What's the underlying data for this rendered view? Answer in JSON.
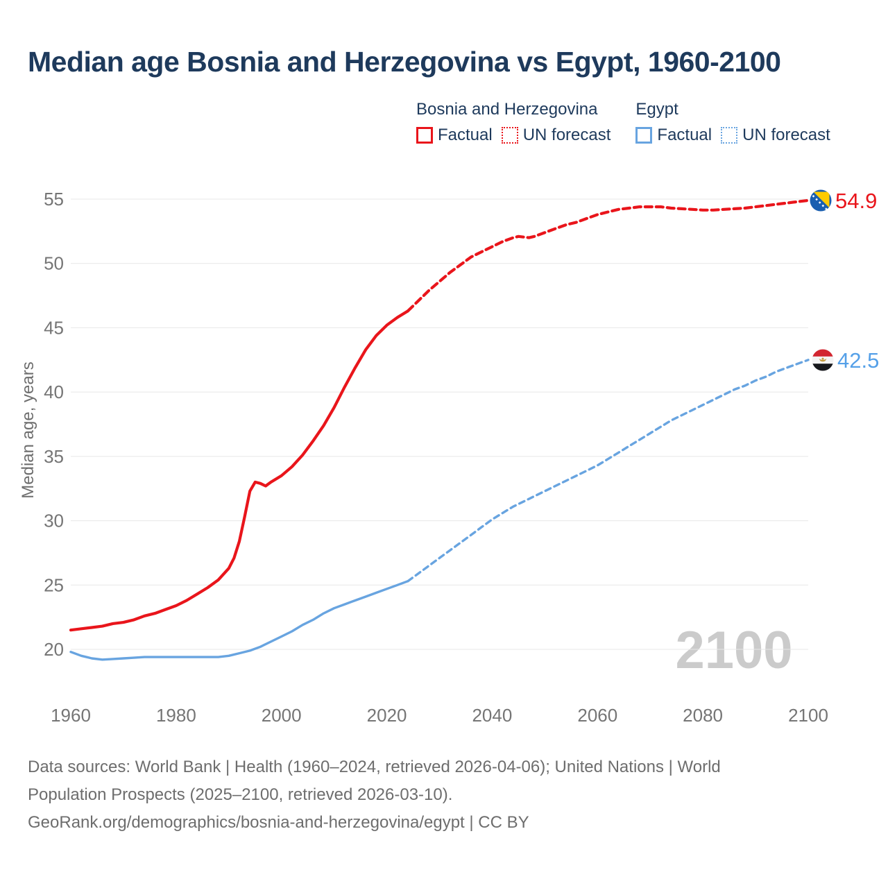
{
  "title": "Median age Bosnia and Herzegovina vs Egypt, 1960-2100",
  "legend": {
    "groups": [
      {
        "heading": "Bosnia and Herzegovina",
        "color": "#e9151b",
        "items": [
          {
            "label": "Factual",
            "style": "solid"
          },
          {
            "label": "UN forecast",
            "style": "dotted"
          }
        ]
      },
      {
        "heading": "Egypt",
        "color": "#68a4e0",
        "items": [
          {
            "label": "Factual",
            "style": "solid"
          },
          {
            "label": "UN forecast",
            "style": "dotted"
          }
        ]
      }
    ]
  },
  "chart_data": {
    "type": "line",
    "title": "Median age Bosnia and Herzegovina vs Egypt, 1960-2100",
    "xlabel": "",
    "ylabel": "Median age, years",
    "x_range": [
      1960,
      2100
    ],
    "y_range": [
      20,
      55
    ],
    "x_ticks": [
      1960,
      1980,
      2000,
      2020,
      2040,
      2060,
      2080,
      2100
    ],
    "y_ticks": [
      20,
      25,
      30,
      35,
      40,
      45,
      50,
      55
    ],
    "grid": "horizontal",
    "legend_position": "top-right",
    "watermark": "2100",
    "series": [
      {
        "id": "bosnia-factual",
        "name": "Bosnia and Herzegovina — Factual",
        "color": "#e9151b",
        "style": "solid",
        "points": [
          [
            1960,
            21.5
          ],
          [
            1962,
            21.6
          ],
          [
            1964,
            21.7
          ],
          [
            1966,
            21.8
          ],
          [
            1968,
            22.0
          ],
          [
            1970,
            22.1
          ],
          [
            1972,
            22.3
          ],
          [
            1974,
            22.6
          ],
          [
            1976,
            22.8
          ],
          [
            1978,
            23.1
          ],
          [
            1980,
            23.4
          ],
          [
            1982,
            23.8
          ],
          [
            1984,
            24.3
          ],
          [
            1986,
            24.8
          ],
          [
            1988,
            25.4
          ],
          [
            1990,
            26.3
          ],
          [
            1991,
            27.1
          ],
          [
            1992,
            28.4
          ],
          [
            1993,
            30.3
          ],
          [
            1994,
            32.3
          ],
          [
            1995,
            33.0
          ],
          [
            1996,
            32.9
          ],
          [
            1997,
            32.7
          ],
          [
            1998,
            33.0
          ],
          [
            2000,
            33.5
          ],
          [
            2002,
            34.2
          ],
          [
            2004,
            35.1
          ],
          [
            2006,
            36.2
          ],
          [
            2008,
            37.4
          ],
          [
            2010,
            38.8
          ],
          [
            2012,
            40.4
          ],
          [
            2014,
            41.9
          ],
          [
            2016,
            43.3
          ],
          [
            2018,
            44.4
          ],
          [
            2020,
            45.2
          ],
          [
            2022,
            45.8
          ],
          [
            2024,
            46.3
          ]
        ]
      },
      {
        "id": "bosnia-forecast",
        "name": "Bosnia and Herzegovina — UN forecast",
        "color": "#e9151b",
        "style": "dashed",
        "points": [
          [
            2024,
            46.3
          ],
          [
            2026,
            47.1
          ],
          [
            2028,
            47.9
          ],
          [
            2030,
            48.6
          ],
          [
            2032,
            49.3
          ],
          [
            2034,
            49.9
          ],
          [
            2036,
            50.5
          ],
          [
            2038,
            50.9
          ],
          [
            2040,
            51.3
          ],
          [
            2042,
            51.7
          ],
          [
            2044,
            52.0
          ],
          [
            2045,
            52.1
          ],
          [
            2047,
            52.0
          ],
          [
            2048,
            52.1
          ],
          [
            2050,
            52.4
          ],
          [
            2052,
            52.7
          ],
          [
            2054,
            53.0
          ],
          [
            2056,
            53.2
          ],
          [
            2058,
            53.5
          ],
          [
            2060,
            53.8
          ],
          [
            2062,
            54.0
          ],
          [
            2064,
            54.2
          ],
          [
            2066,
            54.3
          ],
          [
            2068,
            54.4
          ],
          [
            2070,
            54.4
          ],
          [
            2072,
            54.4
          ],
          [
            2074,
            54.3
          ],
          [
            2076,
            54.25
          ],
          [
            2078,
            54.2
          ],
          [
            2080,
            54.15
          ],
          [
            2082,
            54.15
          ],
          [
            2084,
            54.2
          ],
          [
            2086,
            54.25
          ],
          [
            2088,
            54.3
          ],
          [
            2090,
            54.4
          ],
          [
            2092,
            54.5
          ],
          [
            2094,
            54.6
          ],
          [
            2096,
            54.7
          ],
          [
            2098,
            54.8
          ],
          [
            2100,
            54.9
          ]
        ]
      },
      {
        "id": "egypt-factual",
        "name": "Egypt — Factual",
        "color": "#68a4e0",
        "style": "solid",
        "points": [
          [
            1960,
            19.8
          ],
          [
            1962,
            19.5
          ],
          [
            1964,
            19.3
          ],
          [
            1966,
            19.2
          ],
          [
            1968,
            19.25
          ],
          [
            1970,
            19.3
          ],
          [
            1972,
            19.35
          ],
          [
            1974,
            19.4
          ],
          [
            1976,
            19.4
          ],
          [
            1978,
            19.4
          ],
          [
            1980,
            19.4
          ],
          [
            1982,
            19.4
          ],
          [
            1984,
            19.4
          ],
          [
            1986,
            19.4
          ],
          [
            1988,
            19.4
          ],
          [
            1990,
            19.5
          ],
          [
            1992,
            19.7
          ],
          [
            1994,
            19.9
          ],
          [
            1996,
            20.2
          ],
          [
            1998,
            20.6
          ],
          [
            2000,
            21.0
          ],
          [
            2002,
            21.4
          ],
          [
            2004,
            21.9
          ],
          [
            2006,
            22.3
          ],
          [
            2008,
            22.8
          ],
          [
            2010,
            23.2
          ],
          [
            2012,
            23.5
          ],
          [
            2014,
            23.8
          ],
          [
            2016,
            24.1
          ],
          [
            2018,
            24.4
          ],
          [
            2020,
            24.7
          ],
          [
            2022,
            25.0
          ],
          [
            2024,
            25.3
          ]
        ]
      },
      {
        "id": "egypt-forecast",
        "name": "Egypt — UN forecast",
        "color": "#68a4e0",
        "style": "dashed",
        "points": [
          [
            2024,
            25.3
          ],
          [
            2026,
            25.9
          ],
          [
            2028,
            26.5
          ],
          [
            2030,
            27.1
          ],
          [
            2032,
            27.7
          ],
          [
            2034,
            28.3
          ],
          [
            2036,
            28.9
          ],
          [
            2038,
            29.5
          ],
          [
            2040,
            30.1
          ],
          [
            2042,
            30.6
          ],
          [
            2044,
            31.1
          ],
          [
            2046,
            31.5
          ],
          [
            2048,
            31.9
          ],
          [
            2050,
            32.3
          ],
          [
            2052,
            32.7
          ],
          [
            2054,
            33.1
          ],
          [
            2056,
            33.5
          ],
          [
            2058,
            33.9
          ],
          [
            2060,
            34.3
          ],
          [
            2062,
            34.8
          ],
          [
            2064,
            35.3
          ],
          [
            2066,
            35.8
          ],
          [
            2068,
            36.3
          ],
          [
            2070,
            36.8
          ],
          [
            2072,
            37.3
          ],
          [
            2074,
            37.8
          ],
          [
            2076,
            38.2
          ],
          [
            2078,
            38.6
          ],
          [
            2080,
            39.0
          ],
          [
            2082,
            39.4
          ],
          [
            2084,
            39.8
          ],
          [
            2086,
            40.2
          ],
          [
            2088,
            40.5
          ],
          [
            2090,
            40.9
          ],
          [
            2092,
            41.2
          ],
          [
            2094,
            41.6
          ],
          [
            2096,
            41.9
          ],
          [
            2098,
            42.2
          ],
          [
            2100,
            42.5
          ]
        ]
      }
    ],
    "end_labels": [
      {
        "series": "Bosnia and Herzegovina",
        "value": "54.9",
        "color": "#e9151b",
        "flag": "bosnia-and-herzegovina"
      },
      {
        "series": "Egypt",
        "value": "42.5",
        "color": "#55a0e8",
        "flag": "egypt"
      }
    ]
  },
  "footer": {
    "lines": [
      "Data sources: World Bank | Health (1960–2024, retrieved 2026-04-06); United Nations | World",
      "Population Prospects (2025–2100, retrieved 2026-03-10).",
      "GeoRank.org/demographics/bosnia-and-herzegovina/egypt | CC BY"
    ]
  }
}
